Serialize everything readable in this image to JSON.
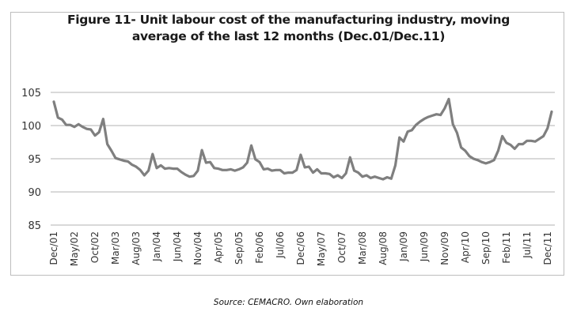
{
  "chart_data": {
    "type": "line",
    "title": "Figure 11- Unit labour cost of the manufacturing industry, moving average of the last 12 months (Dec.01/Dec.11)",
    "title_lines": [
      "Figure 11- Unit labour cost of the manufacturing industry, moving",
      "average of the last 12 months (Dec.01/Dec.11)"
    ],
    "xlabel": "",
    "ylabel": "",
    "ylim": [
      85,
      105
    ],
    "yticks": [
      85,
      90,
      95,
      100,
      105
    ],
    "grid": true,
    "legend": "none",
    "line_color": "#7f7f7f",
    "x_start": "Dec/01",
    "x_end": "Dec/11",
    "frequency": "monthly",
    "xtick_labels": [
      "Dec/01",
      "May/02",
      "Oct/02",
      "Mar/03",
      "Aug/03",
      "Jan/04",
      "Jun/04",
      "Nov/04",
      "Apr/05",
      "Sep/05",
      "Feb/06",
      "Jul/06",
      "Dec/06",
      "May/07",
      "Oct/07",
      "Mar/08",
      "Aug/08",
      "Jan/09",
      "Jun/09",
      "Nov/09",
      "Apr/10",
      "Sep/10",
      "Feb/11",
      "Jul/11",
      "Dec/11"
    ],
    "series": [
      {
        "name": "Unit labour cost (12-month moving average)",
        "values": [
          103.6,
          101.2,
          100.9,
          100.1,
          100.1,
          99.8,
          100.2,
          99.8,
          99.5,
          99.4,
          98.5,
          99.0,
          101.0,
          97.2,
          96.2,
          95.1,
          94.9,
          94.7,
          94.6,
          94.1,
          93.8,
          93.3,
          92.5,
          93.2,
          95.7,
          93.6,
          94.0,
          93.5,
          93.6,
          93.5,
          93.5,
          93.0,
          92.6,
          92.3,
          92.4,
          93.2,
          96.3,
          94.4,
          94.5,
          93.6,
          93.5,
          93.3,
          93.3,
          93.4,
          93.2,
          93.4,
          93.7,
          94.4,
          97.0,
          94.9,
          94.5,
          93.4,
          93.5,
          93.2,
          93.3,
          93.3,
          92.8,
          92.9,
          92.9,
          93.3,
          95.6,
          93.7,
          93.8,
          92.9,
          93.4,
          92.8,
          92.8,
          92.7,
          92.2,
          92.5,
          92.1,
          92.8,
          95.2,
          93.2,
          92.9,
          92.3,
          92.5,
          92.1,
          92.3,
          92.1,
          91.9,
          92.2,
          92.0,
          94.0,
          98.2,
          97.6,
          99.1,
          99.3,
          100.1,
          100.6,
          101.0,
          101.3,
          101.5,
          101.7,
          101.6,
          102.6,
          104.0,
          100.2,
          98.9,
          96.7,
          96.2,
          95.4,
          95.0,
          94.8,
          94.5,
          94.3,
          94.5,
          94.8,
          96.2,
          98.4,
          97.4,
          97.1,
          96.5,
          97.2,
          97.2,
          97.7,
          97.7,
          97.6,
          98.0,
          98.4,
          99.6,
          102.1
        ]
      }
    ]
  },
  "source_note": "Source: CEMACRO. Own elaboration"
}
